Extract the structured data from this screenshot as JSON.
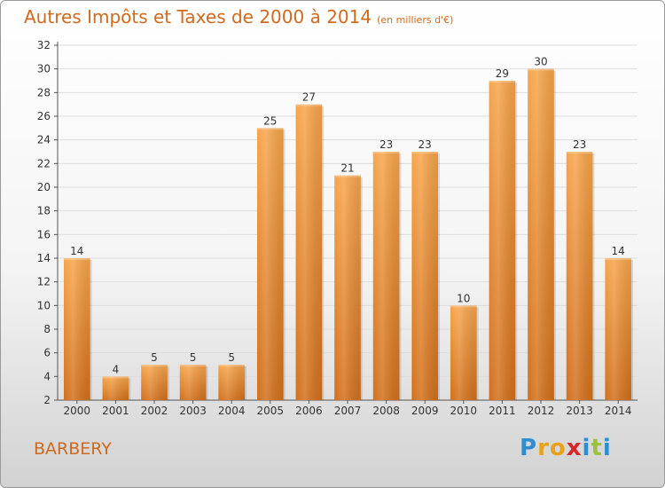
{
  "title": "Autres Impôts et Taxes de 2000 à 2014",
  "subtitle": "(en milliers d'€)",
  "place": "BARBERY",
  "logo": {
    "text": "Proxiti",
    "letters": [
      {
        "ch": "P",
        "color": "#2e8fd0"
      },
      {
        "ch": "r",
        "color": "#e8a21a"
      },
      {
        "ch": "o",
        "color": "#e8a21a"
      },
      {
        "ch": "x",
        "color": "#d8262a"
      },
      {
        "ch": "i",
        "color": "#2e8fd0"
      },
      {
        "ch": "t",
        "color": "#9ac23c"
      },
      {
        "ch": "i",
        "color": "#2e8fd0"
      }
    ]
  },
  "colors": {
    "bar_top": "#f7a54c",
    "bar_bottom": "#d2701c",
    "accent_text": "#d06a1e",
    "grid": "#dddddd"
  },
  "chart_data": {
    "type": "bar",
    "title": "Autres Impôts et Taxes de 2000 à 2014",
    "subtitle": "(en milliers d'€)",
    "xlabel": "",
    "ylabel": "",
    "categories": [
      "2000",
      "2001",
      "2002",
      "2003",
      "2004",
      "2005",
      "2006",
      "2007",
      "2008",
      "2009",
      "2010",
      "2011",
      "2012",
      "2013",
      "2014"
    ],
    "values": [
      14,
      4,
      5,
      5,
      5,
      25,
      27,
      21,
      23,
      23,
      10,
      29,
      30,
      23,
      14
    ],
    "ylim": [
      2,
      32
    ],
    "yticks": [
      2,
      4,
      6,
      8,
      10,
      12,
      14,
      16,
      18,
      20,
      22,
      24,
      26,
      28,
      30,
      32
    ],
    "grid": true,
    "legend": "none"
  }
}
